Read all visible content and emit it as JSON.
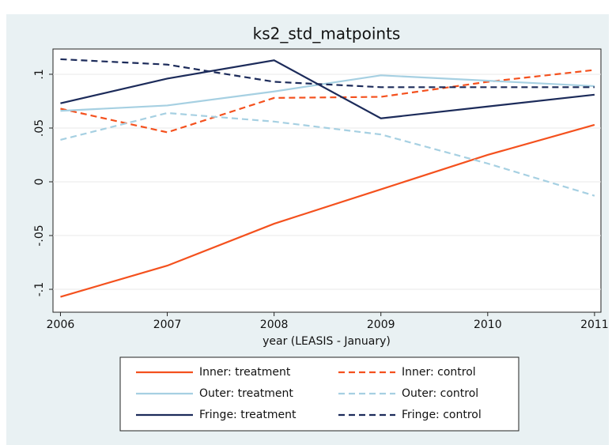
{
  "chart_data": {
    "type": "line",
    "title": "ks2_std_matpoints",
    "x_label": "year (LEASIS - January)",
    "x": [
      2006,
      2007,
      2008,
      2009,
      2010,
      2011
    ],
    "series": [
      {
        "name": "Inner: treatment",
        "color": "#f4511e",
        "dash": "solid",
        "values": [
          -0.107,
          -0.078,
          -0.039,
          -0.007,
          0.025,
          0.053
        ]
      },
      {
        "name": "Inner: control",
        "color": "#f4511e",
        "dash": "dashed",
        "values": [
          0.068,
          0.046,
          0.078,
          0.079,
          0.093,
          0.104
        ]
      },
      {
        "name": "Outer: treatment",
        "color": "#a6d0e2",
        "dash": "solid",
        "values": [
          0.066,
          0.071,
          0.084,
          0.099,
          0.094,
          0.089
        ]
      },
      {
        "name": "Outer: control",
        "color": "#a6d0e2",
        "dash": "dashed",
        "values": [
          0.039,
          0.064,
          0.056,
          0.044,
          0.017,
          -0.013
        ]
      },
      {
        "name": "Fringe: treatment",
        "color": "#1c2b5a",
        "dash": "solid",
        "values": [
          0.073,
          0.096,
          0.113,
          0.059,
          0.07,
          0.081
        ]
      },
      {
        "name": "Fringe: control",
        "color": "#1c2b5a",
        "dash": "dashed",
        "values": [
          0.114,
          0.109,
          0.093,
          0.088,
          0.088,
          0.088
        ]
      }
    ],
    "xlim": [
      2005.93,
      2011.06
    ],
    "xticks": [
      2006,
      2007,
      2008,
      2009,
      2010,
      2011
    ],
    "ylim": [
      -0.1213,
      0.1235
    ],
    "yticks": [
      {
        "value": 0.1,
        "label": ".1"
      },
      {
        "value": 0.05,
        "label": ".05"
      },
      0,
      {
        "value": -0.05,
        "label": "-.05"
      },
      {
        "value": -0.1,
        "label": "-.1"
      }
    ],
    "grid": true,
    "legend": "bottom"
  }
}
